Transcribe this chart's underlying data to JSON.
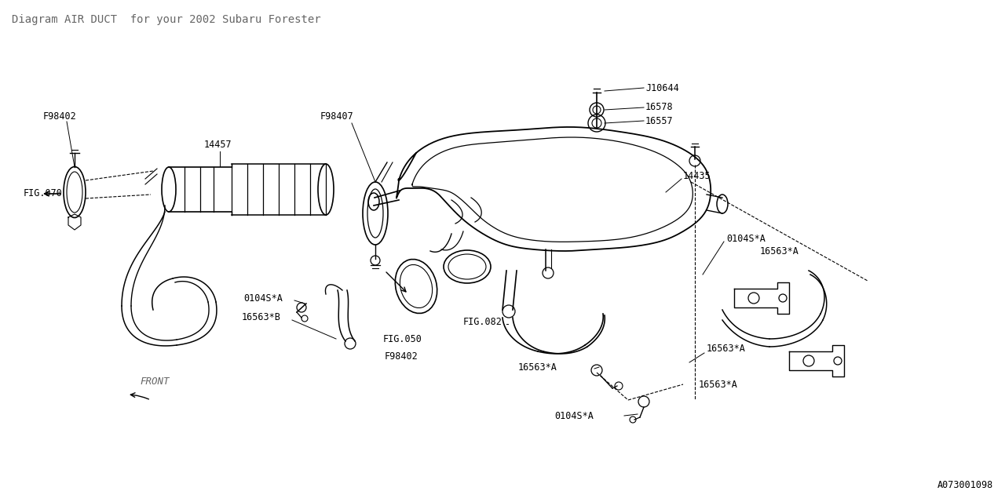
{
  "bg_color": "#ffffff",
  "line_color": "#000000",
  "fig_width": 12.8,
  "fig_height": 6.4,
  "title": "AIR DUCT",
  "subtitle": "for your 2002 Subaru Forester",
  "diagram_id": "A073001098",
  "font_family": "monospace"
}
